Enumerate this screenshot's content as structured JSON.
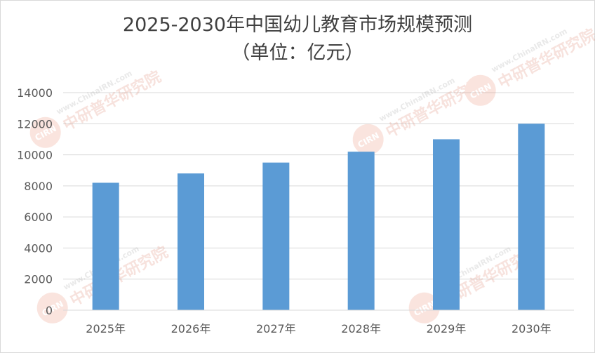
{
  "chart_data": {
    "type": "bar",
    "title": "2025-2030年中国幼儿教育市场规模预测",
    "subtitle": "（单位：亿元）",
    "categories": [
      "2025年",
      "2026年",
      "2027年",
      "2028年",
      "2029年",
      "2030年"
    ],
    "values": [
      8200,
      8800,
      9500,
      10200,
      11000,
      12000
    ],
    "ylim": [
      0,
      14000
    ],
    "yticks": [
      0,
      2000,
      4000,
      6000,
      8000,
      10000,
      12000,
      14000
    ],
    "grid": true,
    "legend": "none",
    "bar_color": "#5b9bd5"
  },
  "watermark": {
    "url_text": "www.ChinaIRN.com",
    "brand_text": "中研普华研究院",
    "logo_text": "CIRN"
  }
}
